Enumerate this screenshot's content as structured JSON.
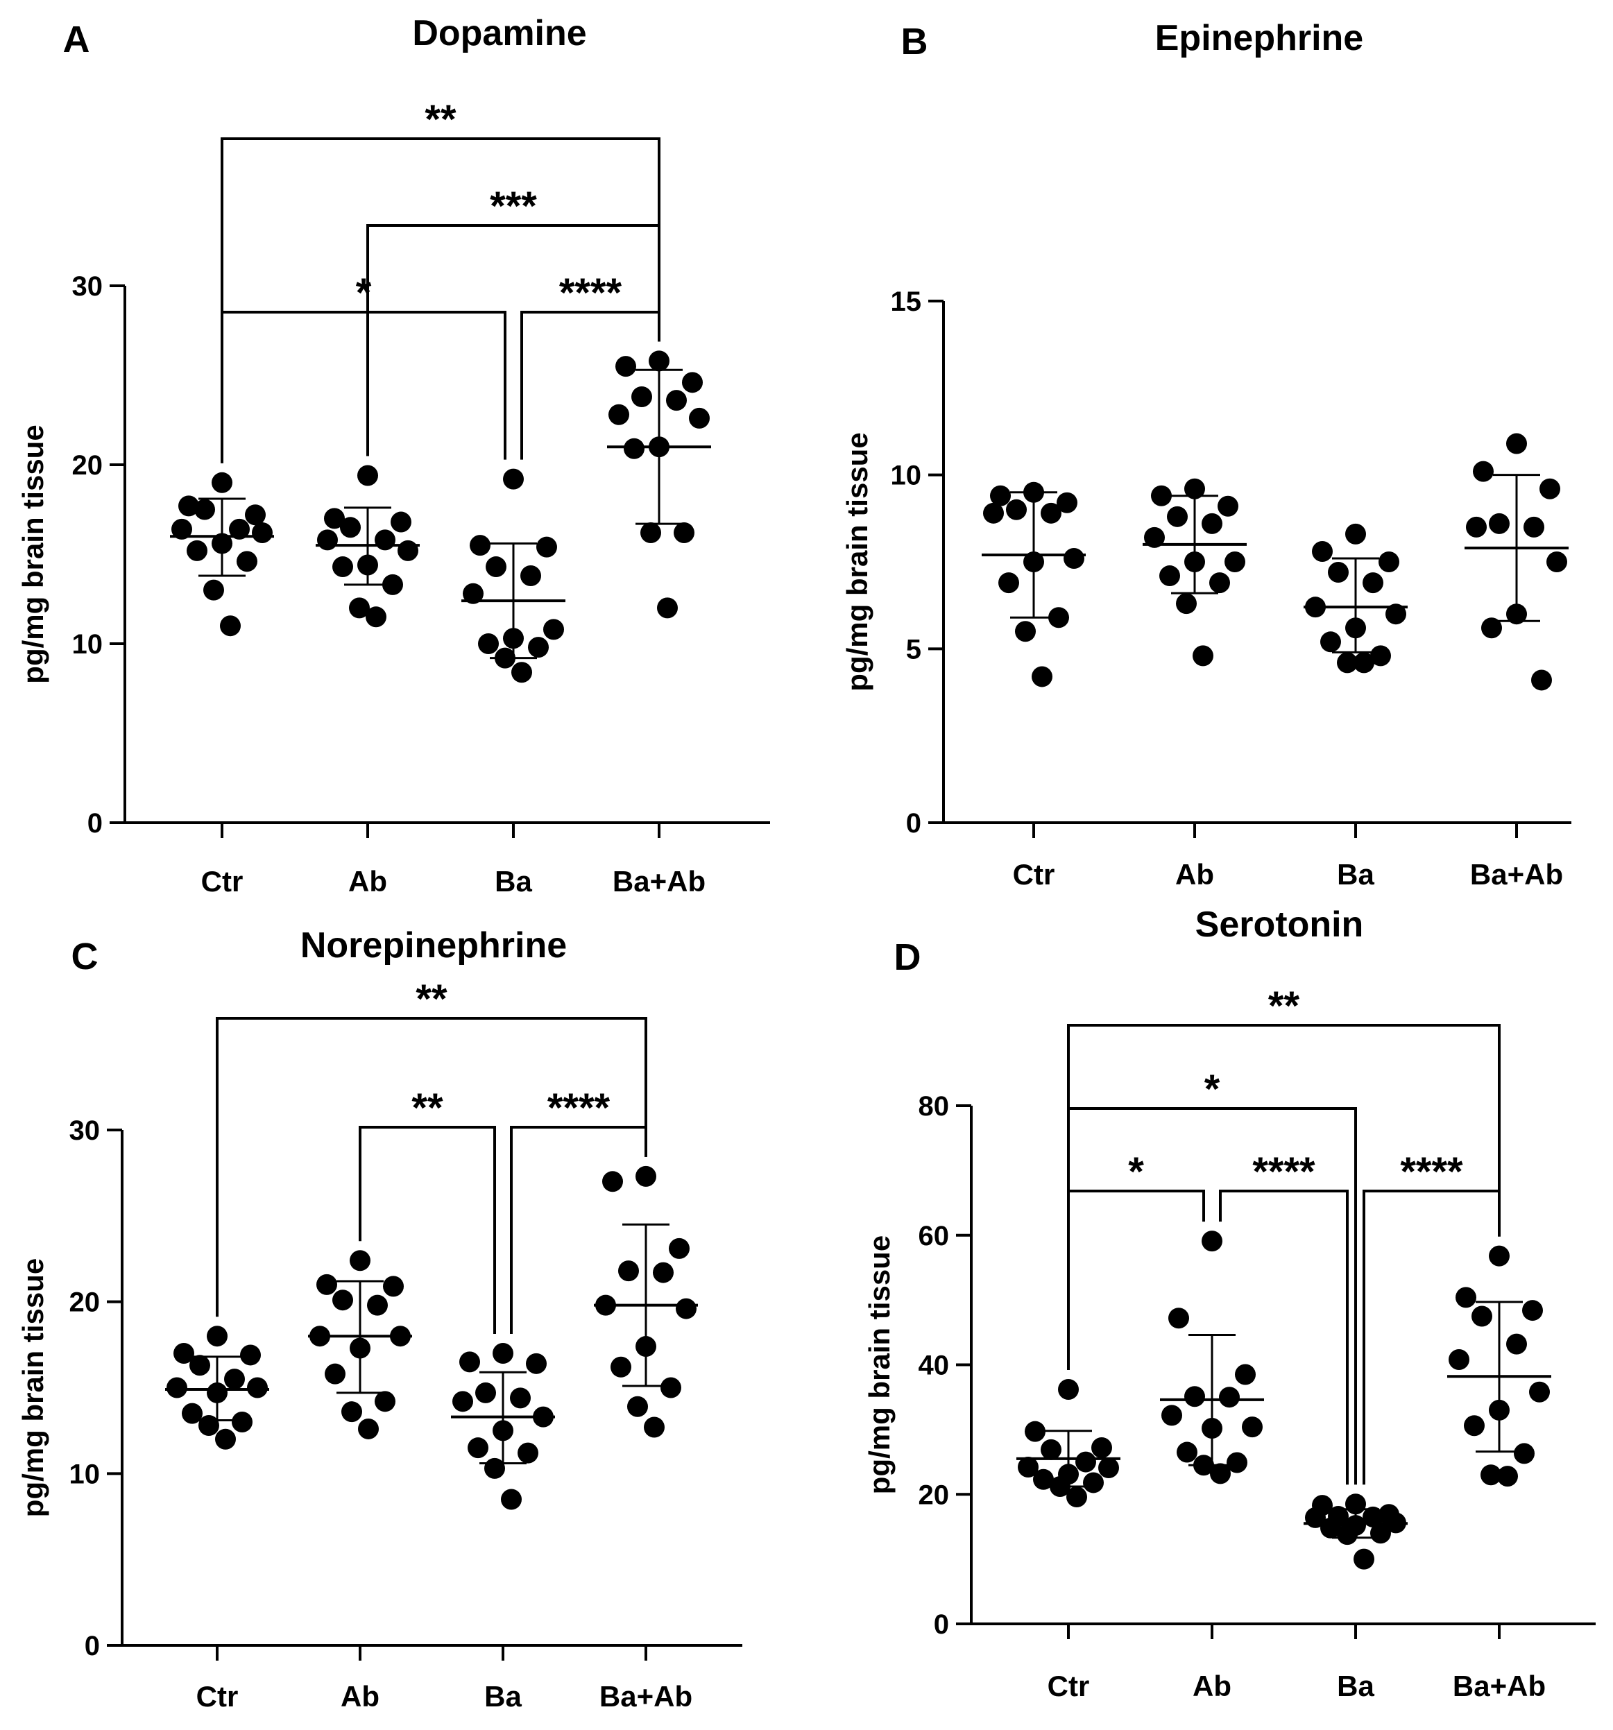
{
  "figure": {
    "y_label": "pg/mg brain tissue"
  },
  "chart_data": [
    {
      "panel": "A",
      "type": "scatter",
      "title": "Dopamine",
      "ylabel": "pg/mg brain tissue",
      "categories": [
        "Ctr",
        "Ab",
        "Ba",
        "Ba+Ab"
      ],
      "ylim": [
        0,
        30
      ],
      "yticks": [
        0,
        10,
        20,
        30
      ],
      "groups": [
        {
          "name": "Ctr",
          "mean": 16.0,
          "sd_low": 13.8,
          "sd_high": 18.1,
          "points": [
            19.0,
            17.7,
            17.2,
            17.5,
            16.4,
            16.4,
            16.2,
            15.6,
            15.2,
            14.6,
            13.0,
            11.0
          ]
        },
        {
          "name": "Ab",
          "mean": 15.5,
          "sd_low": 13.3,
          "sd_high": 17.6,
          "points": [
            19.4,
            17.0,
            16.8,
            16.5,
            15.8,
            15.8,
            15.2,
            14.4,
            14.3,
            13.3,
            12.0,
            11.5
          ]
        },
        {
          "name": "Ba",
          "mean": 12.4,
          "sd_low": 9.2,
          "sd_high": 15.6,
          "points": [
            19.2,
            15.5,
            15.4,
            14.3,
            13.8,
            12.8,
            10.8,
            10.3,
            10.0,
            9.8,
            9.2,
            8.4
          ]
        },
        {
          "name": "Ba+Ab",
          "mean": 21.0,
          "sd_low": 16.7,
          "sd_high": 25.3,
          "points": [
            25.8,
            25.5,
            24.6,
            23.8,
            23.6,
            22.8,
            22.6,
            21.0,
            20.9,
            16.2,
            16.2,
            12.0
          ]
        }
      ],
      "significance": [
        {
          "from": "Ctr",
          "to": "Ba+Ab",
          "label": "**",
          "level": 2
        },
        {
          "from": "Ab",
          "to": "Ba+Ab",
          "label": "***",
          "level": 1
        },
        {
          "from": "Ctr",
          "to": "Ba",
          "label": "*",
          "level": 0
        },
        {
          "from": "Ba",
          "to": "Ba+Ab",
          "label": "****",
          "level": 0
        }
      ]
    },
    {
      "panel": "B",
      "type": "scatter",
      "title": "Epinephrine",
      "ylabel": "pg/mg brain tissue",
      "categories": [
        "Ctr",
        "Ab",
        "Ba",
        "Ba+Ab"
      ],
      "ylim": [
        0,
        15
      ],
      "yticks": [
        0,
        5,
        10,
        15
      ],
      "groups": [
        {
          "name": "Ctr",
          "mean": 7.7,
          "sd_low": 5.9,
          "sd_high": 9.5,
          "points": [
            9.5,
            9.4,
            9.2,
            9.0,
            8.9,
            8.9,
            7.6,
            7.5,
            6.9,
            5.9,
            5.5,
            4.2
          ]
        },
        {
          "name": "Ab",
          "mean": 8.0,
          "sd_low": 6.6,
          "sd_high": 9.4,
          "points": [
            9.6,
            9.4,
            9.1,
            8.8,
            8.6,
            8.2,
            7.5,
            7.5,
            7.1,
            6.9,
            6.3,
            4.8
          ]
        },
        {
          "name": "Ba",
          "mean": 6.2,
          "sd_low": 4.9,
          "sd_high": 7.6,
          "points": [
            8.3,
            7.8,
            7.5,
            7.2,
            6.9,
            6.2,
            6.0,
            5.6,
            5.2,
            4.8,
            4.6,
            4.6
          ]
        },
        {
          "name": "Ba+Ab",
          "mean": 7.9,
          "sd_low": 5.8,
          "sd_high": 10.0,
          "points": [
            10.9,
            10.1,
            9.6,
            8.6,
            8.5,
            8.5,
            7.5,
            6.0,
            5.6,
            4.1
          ]
        }
      ],
      "significance": []
    },
    {
      "panel": "C",
      "type": "scatter",
      "title": "Norepinephrine",
      "ylabel": "pg/mg brain tissue",
      "categories": [
        "Ctr",
        "Ab",
        "Ba",
        "Ba+Ab"
      ],
      "ylim": [
        0,
        30
      ],
      "yticks": [
        0,
        10,
        20,
        30
      ],
      "groups": [
        {
          "name": "Ctr",
          "mean": 14.9,
          "sd_low": 13.1,
          "sd_high": 16.8,
          "points": [
            18.0,
            17.0,
            16.9,
            16.3,
            15.5,
            15.0,
            15.0,
            14.7,
            13.5,
            13.0,
            12.8,
            12.0
          ]
        },
        {
          "name": "Ab",
          "mean": 18.0,
          "sd_low": 14.7,
          "sd_high": 21.2,
          "points": [
            22.4,
            21.0,
            20.9,
            20.1,
            19.8,
            18.0,
            18.0,
            17.3,
            15.8,
            14.2,
            13.6,
            12.6
          ]
        },
        {
          "name": "Ba",
          "mean": 13.3,
          "sd_low": 10.6,
          "sd_high": 15.9,
          "points": [
            17.0,
            16.5,
            16.4,
            14.7,
            14.4,
            14.2,
            13.3,
            12.5,
            11.5,
            11.2,
            10.3,
            8.5
          ]
        },
        {
          "name": "Ba+Ab",
          "mean": 19.8,
          "sd_low": 15.1,
          "sd_high": 24.5,
          "points": [
            27.3,
            27.0,
            23.1,
            21.8,
            21.7,
            19.8,
            19.6,
            17.4,
            16.2,
            15.0,
            13.9,
            12.7
          ]
        }
      ],
      "significance": [
        {
          "from": "Ctr",
          "to": "Ba+Ab",
          "label": "**",
          "level": 1
        },
        {
          "from": "Ab",
          "to": "Ba",
          "label": "**",
          "level": 0
        },
        {
          "from": "Ba",
          "to": "Ba+Ab",
          "label": "****",
          "level": 0
        }
      ]
    },
    {
      "panel": "D",
      "type": "scatter",
      "title": "Serotonin",
      "ylabel": "pg/mg brain tissue",
      "categories": [
        "Ctr",
        "Ab",
        "Ba",
        "Ba+Ab"
      ],
      "ylim": [
        0,
        80
      ],
      "yticks": [
        0,
        20,
        40,
        60,
        80
      ],
      "groups": [
        {
          "name": "Ctr",
          "mean": 25.5,
          "sd_low": 21.2,
          "sd_high": 29.8,
          "points": [
            36.2,
            29.7,
            27.2,
            26.9,
            25.0,
            24.2,
            24.1,
            23.1,
            22.3,
            21.8,
            21.2,
            19.6
          ]
        },
        {
          "name": "Ab",
          "mean": 34.6,
          "sd_low": 24.5,
          "sd_high": 44.6,
          "points": [
            59.1,
            47.2,
            38.5,
            35.1,
            35.0,
            32.2,
            30.4,
            30.2,
            26.5,
            24.9,
            24.5,
            23.2
          ]
        },
        {
          "name": "Ba",
          "mean": 15.5,
          "sd_low": 13.3,
          "sd_high": 17.7,
          "points": [
            18.5,
            18.3,
            16.9,
            16.6,
            16.5,
            16.4,
            15.6,
            15.2,
            14.8,
            14.0,
            13.8,
            10.0
          ]
        },
        {
          "name": "Ba+Ab",
          "mean": 38.2,
          "sd_low": 26.6,
          "sd_high": 49.7,
          "points": [
            56.8,
            50.4,
            48.4,
            47.5,
            43.2,
            40.8,
            35.8,
            33.0,
            30.6,
            26.3,
            23.0,
            22.8
          ]
        }
      ],
      "significance": [
        {
          "from": "Ctr",
          "to": "Ba+Ab",
          "label": "**",
          "level": 2
        },
        {
          "from": "Ctr",
          "to": "Ba",
          "label": "*",
          "level": 1
        },
        {
          "from": "Ctr",
          "to": "Ab",
          "label": "*",
          "level": 0
        },
        {
          "from": "Ab",
          "to": "Ba",
          "label": "****",
          "level": 0
        },
        {
          "from": "Ba",
          "to": "Ba+Ab",
          "label": "****",
          "level": 0
        }
      ]
    }
  ]
}
